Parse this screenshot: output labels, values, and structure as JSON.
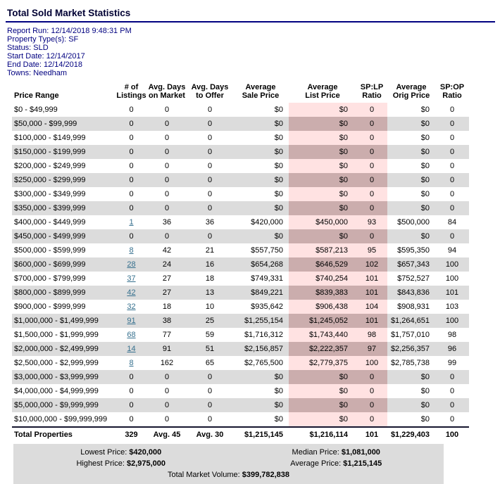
{
  "page": {
    "title": "Total Sold Market Statistics"
  },
  "meta": [
    "Report Run: 12/14/2018 9:48:31 PM",
    "Property Type(s): SF",
    "Status: SLD",
    "Start Date: 12/14/2017",
    "End Date: 12/14/2018",
    "Towns: Needham"
  ],
  "colors": {
    "navy_rule": "#000080",
    "meta_text": "#000080",
    "row_stripe": "#DCDCDC",
    "highlight_light": "#FFE2E2",
    "highlight_dark": "#CBADAD",
    "link": "#36708E"
  },
  "table": {
    "headers": [
      {
        "l1": "",
        "l2": "Price Range"
      },
      {
        "l1": "# of",
        "l2": "Listings"
      },
      {
        "l1": "Avg. Days",
        "l2": "on Market"
      },
      {
        "l1": "Avg. Days",
        "l2": "to Offer"
      },
      {
        "l1": "Average",
        "l2": "Sale Price"
      },
      {
        "l1": "Average",
        "l2": "List Price"
      },
      {
        "l1": "SP:LP",
        "l2": "Ratio"
      },
      {
        "l1": "Average",
        "l2": "Orig Price"
      },
      {
        "l1": "SP:OP",
        "l2": "Ratio"
      }
    ],
    "rows": [
      {
        "range": "$0 - $49,999",
        "listings": "0",
        "link": false,
        "dom": "0",
        "dto": "0",
        "sale": "$0",
        "list": "$0",
        "splp": "0",
        "orig": "$0",
        "spop": "0"
      },
      {
        "range": "$50,000 - $99,999",
        "listings": "0",
        "link": false,
        "dom": "0",
        "dto": "0",
        "sale": "$0",
        "list": "$0",
        "splp": "0",
        "orig": "$0",
        "spop": "0"
      },
      {
        "range": "$100,000 - $149,999",
        "listings": "0",
        "link": false,
        "dom": "0",
        "dto": "0",
        "sale": "$0",
        "list": "$0",
        "splp": "0",
        "orig": "$0",
        "spop": "0"
      },
      {
        "range": "$150,000 - $199,999",
        "listings": "0",
        "link": false,
        "dom": "0",
        "dto": "0",
        "sale": "$0",
        "list": "$0",
        "splp": "0",
        "orig": "$0",
        "spop": "0"
      },
      {
        "range": "$200,000 - $249,999",
        "listings": "0",
        "link": false,
        "dom": "0",
        "dto": "0",
        "sale": "$0",
        "list": "$0",
        "splp": "0",
        "orig": "$0",
        "spop": "0"
      },
      {
        "range": "$250,000 - $299,999",
        "listings": "0",
        "link": false,
        "dom": "0",
        "dto": "0",
        "sale": "$0",
        "list": "$0",
        "splp": "0",
        "orig": "$0",
        "spop": "0"
      },
      {
        "range": "$300,000 - $349,999",
        "listings": "0",
        "link": false,
        "dom": "0",
        "dto": "0",
        "sale": "$0",
        "list": "$0",
        "splp": "0",
        "orig": "$0",
        "spop": "0"
      },
      {
        "range": "$350,000 - $399,999",
        "listings": "0",
        "link": false,
        "dom": "0",
        "dto": "0",
        "sale": "$0",
        "list": "$0",
        "splp": "0",
        "orig": "$0",
        "spop": "0"
      },
      {
        "range": "$400,000 - $449,999",
        "listings": "1",
        "link": true,
        "dom": "36",
        "dto": "36",
        "sale": "$420,000",
        "list": "$450,000",
        "splp": "93",
        "orig": "$500,000",
        "spop": "84"
      },
      {
        "range": "$450,000 - $499,999",
        "listings": "0",
        "link": false,
        "dom": "0",
        "dto": "0",
        "sale": "$0",
        "list": "$0",
        "splp": "0",
        "orig": "$0",
        "spop": "0"
      },
      {
        "range": "$500,000 - $599,999",
        "listings": "8",
        "link": true,
        "dom": "42",
        "dto": "21",
        "sale": "$557,750",
        "list": "$587,213",
        "splp": "95",
        "orig": "$595,350",
        "spop": "94"
      },
      {
        "range": "$600,000 - $699,999",
        "listings": "28",
        "link": true,
        "dom": "24",
        "dto": "16",
        "sale": "$654,268",
        "list": "$646,529",
        "splp": "102",
        "orig": "$657,343",
        "spop": "100"
      },
      {
        "range": "$700,000 - $799,999",
        "listings": "37",
        "link": true,
        "dom": "27",
        "dto": "18",
        "sale": "$749,331",
        "list": "$740,254",
        "splp": "101",
        "orig": "$752,527",
        "spop": "100"
      },
      {
        "range": "$800,000 - $899,999",
        "listings": "42",
        "link": true,
        "dom": "27",
        "dto": "13",
        "sale": "$849,221",
        "list": "$839,383",
        "splp": "101",
        "orig": "$843,836",
        "spop": "101"
      },
      {
        "range": "$900,000 - $999,999",
        "listings": "32",
        "link": true,
        "dom": "18",
        "dto": "10",
        "sale": "$935,642",
        "list": "$906,438",
        "splp": "104",
        "orig": "$908,931",
        "spop": "103"
      },
      {
        "range": "$1,000,000 - $1,499,999",
        "listings": "91",
        "link": true,
        "dom": "38",
        "dto": "25",
        "sale": "$1,255,154",
        "list": "$1,245,052",
        "splp": "101",
        "orig": "$1,264,651",
        "spop": "100"
      },
      {
        "range": "$1,500,000 - $1,999,999",
        "listings": "68",
        "link": true,
        "dom": "77",
        "dto": "59",
        "sale": "$1,716,312",
        "list": "$1,743,440",
        "splp": "98",
        "orig": "$1,757,010",
        "spop": "98"
      },
      {
        "range": "$2,000,000 - $2,499,999",
        "listings": "14",
        "link": true,
        "dom": "91",
        "dto": "51",
        "sale": "$2,156,857",
        "list": "$2,222,357",
        "splp": "97",
        "orig": "$2,256,357",
        "spop": "96"
      },
      {
        "range": "$2,500,000 - $2,999,999",
        "listings": "8",
        "link": true,
        "dom": "162",
        "dto": "65",
        "sale": "$2,765,500",
        "list": "$2,779,375",
        "splp": "100",
        "orig": "$2,785,738",
        "spop": "99"
      },
      {
        "range": "$3,000,000 - $3,999,999",
        "listings": "0",
        "link": false,
        "dom": "0",
        "dto": "0",
        "sale": "$0",
        "list": "$0",
        "splp": "0",
        "orig": "$0",
        "spop": "0"
      },
      {
        "range": "$4,000,000 - $4,999,999",
        "listings": "0",
        "link": false,
        "dom": "0",
        "dto": "0",
        "sale": "$0",
        "list": "$0",
        "splp": "0",
        "orig": "$0",
        "spop": "0"
      },
      {
        "range": "$5,000,000 - $9,999,999",
        "listings": "0",
        "link": false,
        "dom": "0",
        "dto": "0",
        "sale": "$0",
        "list": "$0",
        "splp": "0",
        "orig": "$0",
        "spop": "0"
      },
      {
        "range": "$10,000,000 - $99,999,999",
        "listings": "0",
        "link": false,
        "dom": "0",
        "dto": "0",
        "sale": "$0",
        "list": "$0",
        "splp": "0",
        "orig": "$0",
        "spop": "0"
      }
    ],
    "total": {
      "label": "Total Properties",
      "listings": "329",
      "dom": "Avg. 45",
      "dto": "Avg. 30",
      "sale": "$1,215,145",
      "list": "$1,216,114",
      "splp": "101",
      "orig": "$1,229,403",
      "spop": "100"
    }
  },
  "summary": {
    "lowest_label": "Lowest Price:",
    "lowest_value": "$420,000",
    "median_label": "Median Price:",
    "median_value": "$1,081,000",
    "highest_label": "Highest Price:",
    "highest_value": "$2,975,000",
    "average_label": "Average Price:",
    "average_value": "$1,215,145",
    "volume_label": "Total Market Volume:",
    "volume_value": "$399,782,838"
  }
}
